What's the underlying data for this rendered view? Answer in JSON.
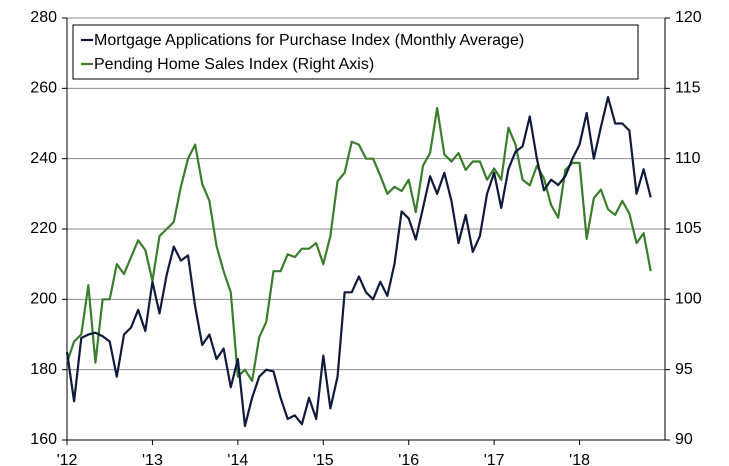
{
  "chart_data": {
    "type": "line",
    "x": [
      2012,
      2012.083,
      2012.167,
      2012.25,
      2012.333,
      2012.417,
      2012.5,
      2012.583,
      2012.667,
      2012.75,
      2012.833,
      2012.917,
      2013,
      2013.083,
      2013.167,
      2013.25,
      2013.333,
      2013.417,
      2013.5,
      2013.583,
      2013.667,
      2013.75,
      2013.833,
      2013.917,
      2014,
      2014.083,
      2014.167,
      2014.25,
      2014.333,
      2014.417,
      2014.5,
      2014.583,
      2014.667,
      2014.75,
      2014.833,
      2014.917,
      2015,
      2015.083,
      2015.167,
      2015.25,
      2015.333,
      2015.417,
      2015.5,
      2015.583,
      2015.667,
      2015.75,
      2015.833,
      2015.917,
      2016,
      2016.083,
      2016.167,
      2016.25,
      2016.333,
      2016.417,
      2016.5,
      2016.583,
      2016.667,
      2016.75,
      2016.833,
      2016.917,
      2017,
      2017.083,
      2017.167,
      2017.25,
      2017.333,
      2017.417,
      2017.5,
      2017.583,
      2017.667,
      2017.75,
      2017.833,
      2017.917,
      2018,
      2018.083,
      2018.167,
      2018.25,
      2018.333,
      2018.417,
      2018.5,
      2018.583,
      2018.667,
      2018.75,
      2018.833
    ],
    "series": [
      {
        "name": "Mortgage Applications for Purchase Index (Monthly Average)",
        "color": "#0f1a3c",
        "axis": "y",
        "values": [
          185,
          171,
          189,
          190,
          190.5,
          189.5,
          188,
          178,
          190,
          192,
          197,
          191,
          205,
          196,
          207,
          215,
          211,
          212.5,
          198,
          187,
          190,
          183,
          186,
          175,
          183,
          164,
          172,
          178,
          180,
          179.5,
          172,
          166,
          167,
          164.5,
          172,
          166,
          184,
          169,
          178,
          202,
          202,
          206.5,
          202,
          200,
          205,
          201,
          210,
          225,
          223,
          217,
          226,
          235,
          230,
          236,
          228,
          216,
          224,
          213.5,
          218,
          230,
          236,
          226,
          237,
          242,
          243.5,
          252,
          240,
          231,
          234,
          232.5,
          235,
          240,
          244,
          253,
          240,
          249,
          257.5,
          250,
          250,
          248,
          230,
          237,
          229
        ]
      },
      {
        "name": "Pending Home Sales Index (Right Axis)",
        "color": "#3a7d2c",
        "axis": "y2",
        "values": [
          95.5,
          97,
          97.5,
          101,
          95.5,
          100,
          100,
          102.5,
          101.8,
          103,
          104.2,
          103.5,
          101.3,
          104.5,
          105,
          105.5,
          108,
          110,
          111,
          108.2,
          107,
          103.8,
          102,
          100.5,
          94.5,
          95,
          94.2,
          97.3,
          98.4,
          102,
          102,
          103.2,
          103,
          103.6,
          103.6,
          104,
          102.5,
          104.5,
          108.4,
          109,
          111.2,
          111,
          110,
          110,
          108.8,
          107.5,
          108,
          107.7,
          108.5,
          106.2,
          109.5,
          110.4,
          113.6,
          110.3,
          109.8,
          110.4,
          109.2,
          109.8,
          109.8,
          108.5,
          109.3,
          108.5,
          112.2,
          111,
          108.5,
          108.1,
          109.5,
          108.6,
          106.7,
          105.8,
          109.2,
          109.7,
          109.7,
          104.3,
          107.2,
          107.8,
          106.4,
          106,
          107,
          106.1,
          104,
          104.7,
          102
        ]
      }
    ],
    "xlim": [
      2012,
      2019
    ],
    "xticks": [
      {
        "value": 2012,
        "label": "'12"
      },
      {
        "value": 2013,
        "label": "'13"
      },
      {
        "value": 2014,
        "label": "'14"
      },
      {
        "value": 2015,
        "label": "'15"
      },
      {
        "value": 2016,
        "label": "'16"
      },
      {
        "value": 2017,
        "label": "'17"
      },
      {
        "value": 2018,
        "label": "'18"
      }
    ],
    "ylim": [
      160,
      280
    ],
    "yticks": [
      160,
      180,
      200,
      220,
      240,
      260,
      280
    ],
    "y2lim": [
      90,
      120
    ],
    "y2ticks": [
      90,
      95,
      100,
      105,
      110,
      115,
      120
    ],
    "grid": true,
    "legend": "top-left"
  }
}
